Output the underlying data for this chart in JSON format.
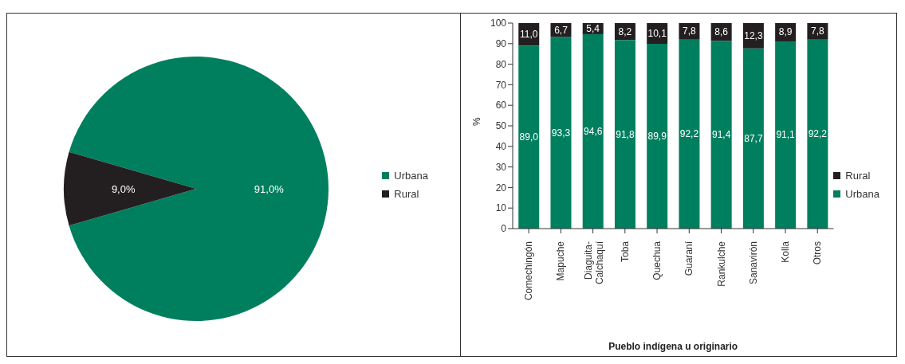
{
  "chart_data": [
    {
      "type": "pie",
      "categories": [
        "Urbana",
        "Rural"
      ],
      "values": [
        91.0,
        9.0
      ],
      "colors": [
        "#007f5f",
        "#231f20"
      ],
      "value_labels": [
        "91,0%",
        "9,0%"
      ],
      "legend": "right"
    },
    {
      "type": "bar",
      "stacked": true,
      "xlabel": "Pueblo indígena u originario",
      "ylabel": "%",
      "categories": [
        "Comechingón",
        "Mapuche",
        "Diaguita-Calchaquí",
        "Toba",
        "Quechua",
        "Guaraní",
        "Rankulche",
        "Sanavirón",
        "Kolla",
        "Otros"
      ],
      "series": [
        {
          "name": "Urbana",
          "color": "#007f5f",
          "values": [
            89.0,
            93.3,
            94.6,
            91.8,
            89.9,
            92.2,
            91.4,
            87.7,
            91.1,
            92.2
          ],
          "value_labels": [
            "89,0",
            "93,3",
            "94,6",
            "91,8",
            "89,9",
            "92,2",
            "91,4",
            "87,7",
            "91,1",
            "92,2"
          ]
        },
        {
          "name": "Rural",
          "color": "#231f20",
          "values": [
            11.0,
            6.7,
            5.4,
            8.2,
            10.1,
            7.8,
            8.6,
            12.3,
            8.9,
            7.8
          ],
          "value_labels": [
            "11,0",
            "6,7",
            "5,4",
            "8,2",
            "10,1",
            "7,8",
            "8,6",
            "12,3",
            "8,9",
            "7,8"
          ]
        }
      ],
      "ylim": [
        0,
        100
      ],
      "yticks": [
        0,
        10,
        20,
        30,
        40,
        50,
        60,
        70,
        80,
        90,
        100
      ],
      "grid": false,
      "legend": "right"
    }
  ]
}
